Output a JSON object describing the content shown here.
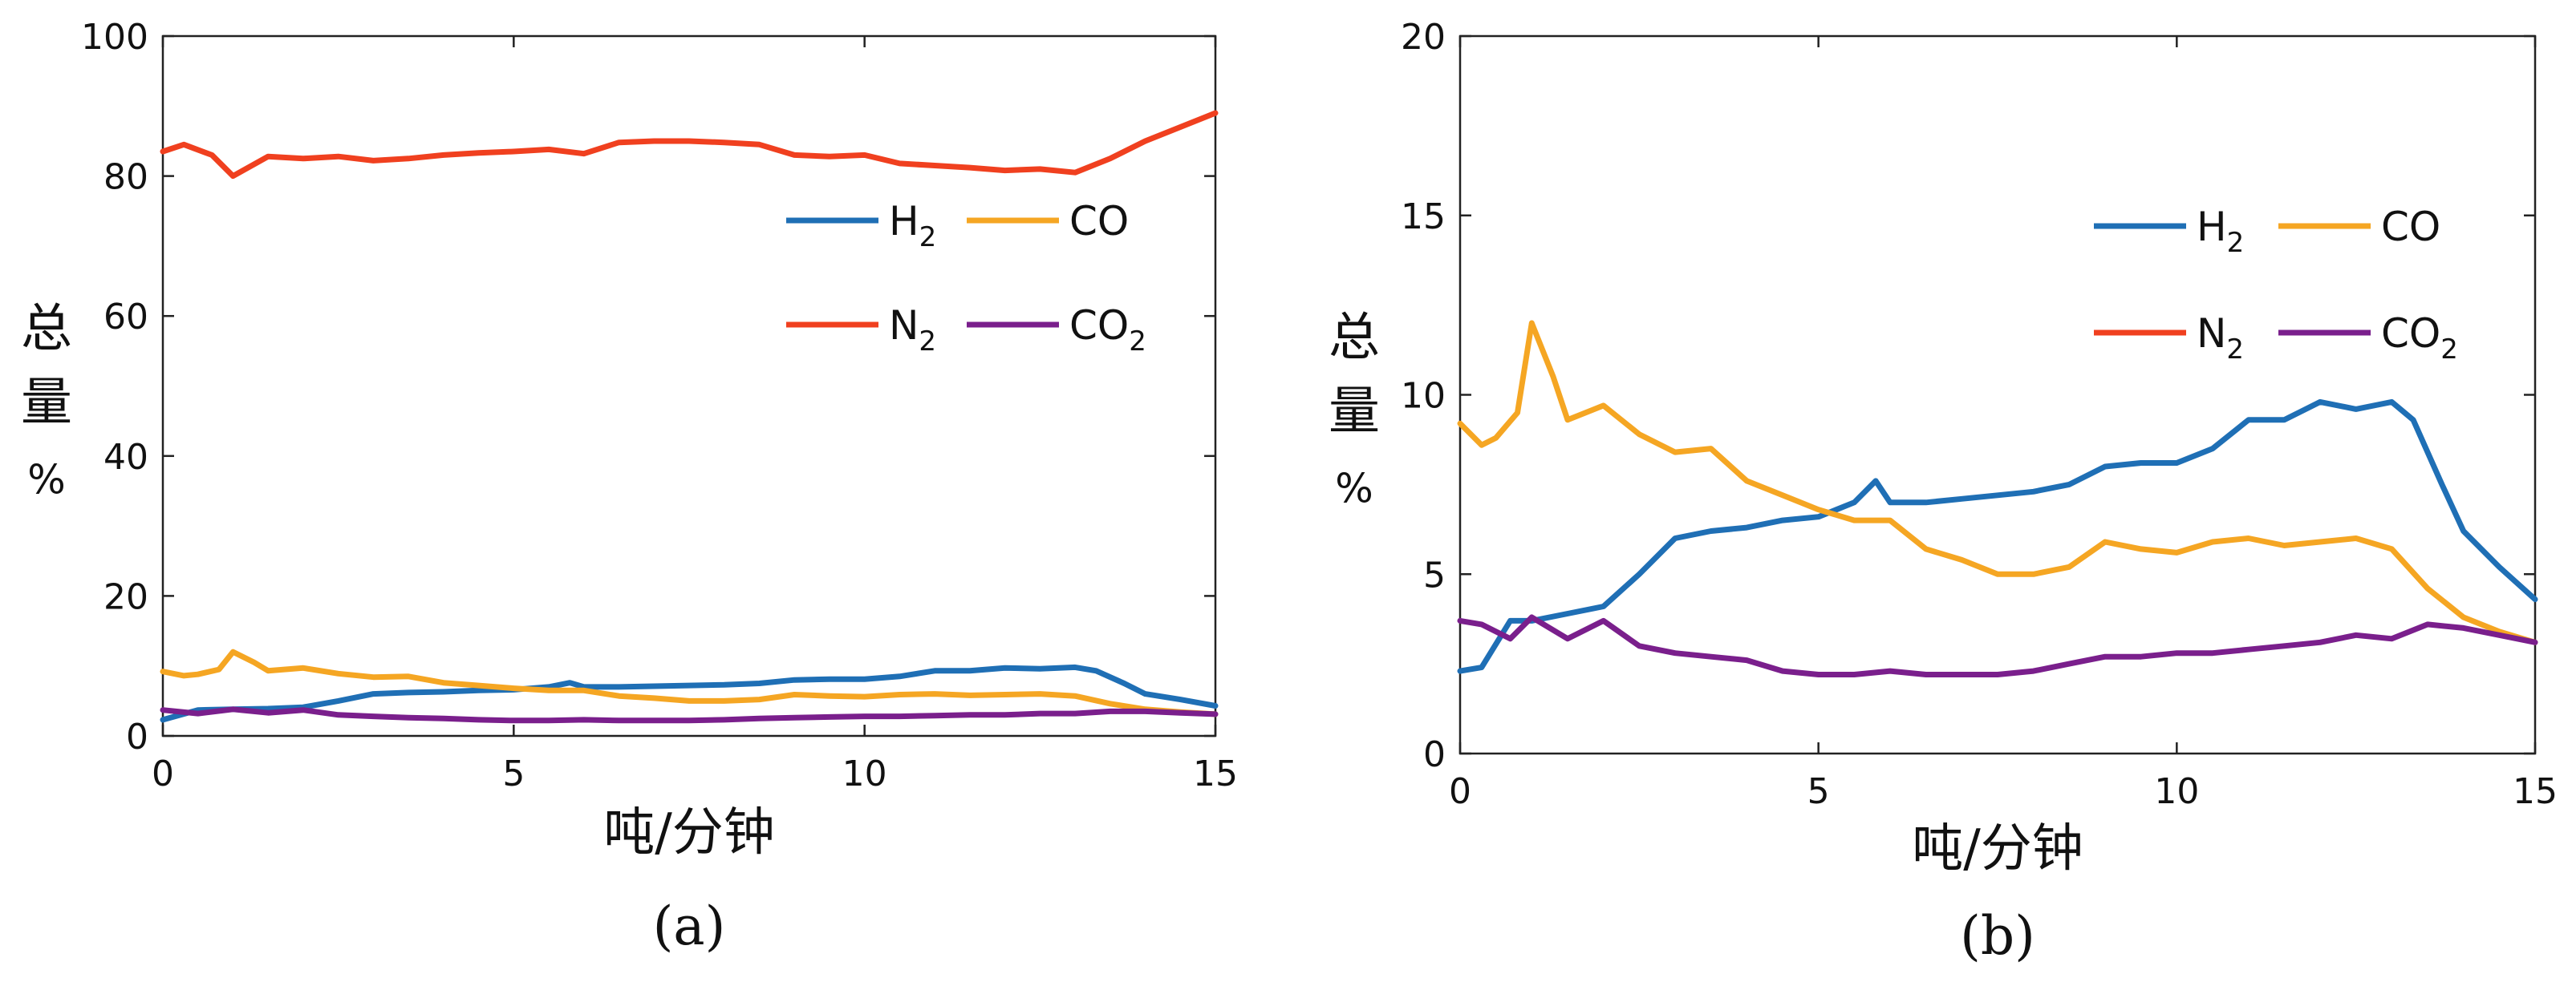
{
  "chart_data": [
    {
      "panel": "(a)",
      "type": "line",
      "xlabel": "吨/分钟",
      "ylabel": "总量%",
      "xlim": [
        0,
        15
      ],
      "ylim": [
        0,
        100
      ],
      "xticks": [
        0,
        5,
        10,
        15
      ],
      "yticks": [
        0,
        20,
        40,
        60,
        80,
        100
      ],
      "legend_position": "right",
      "series": [
        {
          "name": "H2",
          "color": "#1f6fb5",
          "x": [
            0,
            0.5,
            1,
            1.5,
            2,
            2.5,
            3,
            3.5,
            4,
            4.5,
            5,
            5.5,
            5.8,
            6,
            6.5,
            7,
            7.5,
            8,
            8.5,
            9,
            9.5,
            10,
            10.5,
            11,
            11.5,
            12,
            12.5,
            13,
            13.3,
            13.7,
            14,
            14.5,
            15
          ],
          "y": [
            2.3,
            3.7,
            3.8,
            3.9,
            4.1,
            5.0,
            6.0,
            6.2,
            6.3,
            6.5,
            6.6,
            7.0,
            7.6,
            7.0,
            7.0,
            7.1,
            7.2,
            7.3,
            7.5,
            8.0,
            8.1,
            8.1,
            8.5,
            9.3,
            9.3,
            9.7,
            9.6,
            9.8,
            9.3,
            7.5,
            6.0,
            5.2,
            4.3
          ]
        },
        {
          "name": "CO",
          "color": "#f5a623",
          "x": [
            0,
            0.3,
            0.5,
            0.8,
            1,
            1.3,
            1.5,
            2,
            2.5,
            3,
            3.5,
            4,
            4.5,
            5,
            5.5,
            6,
            6.5,
            7,
            7.5,
            8,
            8.5,
            9,
            9.5,
            10,
            10.5,
            11,
            11.5,
            12,
            12.5,
            13,
            13.5,
            14,
            14.5,
            15
          ],
          "y": [
            9.2,
            8.6,
            8.8,
            9.5,
            12.0,
            10.5,
            9.3,
            9.7,
            8.9,
            8.4,
            8.5,
            7.6,
            7.2,
            6.8,
            6.5,
            6.5,
            5.7,
            5.4,
            5.0,
            5.0,
            5.2,
            5.9,
            5.7,
            5.6,
            5.9,
            6.0,
            5.8,
            5.9,
            6.0,
            5.7,
            4.6,
            3.8,
            3.4,
            3.1
          ]
        },
        {
          "name": "N2",
          "color": "#f0401f",
          "x": [
            0,
            0.3,
            0.7,
            1,
            1.5,
            2,
            2.5,
            3,
            3.5,
            4,
            4.5,
            5,
            5.5,
            6,
            6.5,
            7,
            7.5,
            8,
            8.5,
            9,
            9.5,
            10,
            10.5,
            11,
            11.5,
            12,
            12.5,
            13,
            13.5,
            14,
            14.5,
            15
          ],
          "y": [
            83.5,
            84.5,
            83.0,
            80.0,
            82.8,
            82.5,
            82.8,
            82.2,
            82.5,
            83.0,
            83.3,
            83.5,
            83.8,
            83.2,
            84.8,
            85.0,
            85.0,
            84.8,
            84.5,
            83.0,
            82.8,
            83.0,
            81.8,
            81.5,
            81.2,
            80.8,
            81.0,
            80.5,
            82.5,
            85.0,
            87.0,
            89.0
          ]
        },
        {
          "name": "CO2",
          "color": "#7a1f8c",
          "x": [
            0,
            0.5,
            1,
            1.5,
            2,
            2.5,
            3,
            3.5,
            4,
            4.5,
            5,
            5.5,
            6,
            6.5,
            7,
            7.5,
            8,
            8.5,
            9,
            9.5,
            10,
            10.5,
            11,
            11.5,
            12,
            12.5,
            13,
            13.5,
            14,
            14.5,
            15
          ],
          "y": [
            3.7,
            3.2,
            3.8,
            3.3,
            3.7,
            3.0,
            2.8,
            2.6,
            2.5,
            2.3,
            2.2,
            2.2,
            2.3,
            2.2,
            2.2,
            2.2,
            2.3,
            2.5,
            2.6,
            2.7,
            2.8,
            2.8,
            2.9,
            3.0,
            3.0,
            3.2,
            3.2,
            3.5,
            3.5,
            3.3,
            3.1
          ]
        }
      ]
    },
    {
      "panel": "(b)",
      "type": "line",
      "xlabel": "吨/分钟",
      "ylabel": "总量%",
      "xlim": [
        0,
        15
      ],
      "ylim": [
        0,
        20
      ],
      "xticks": [
        0,
        5,
        10,
        15
      ],
      "yticks": [
        0,
        5,
        10,
        15,
        20
      ],
      "legend_position": "right",
      "series": [
        {
          "name": "H2",
          "color": "#1f6fb5",
          "x": [
            0,
            0.3,
            0.7,
            1,
            1.5,
            2,
            2.5,
            3,
            3.5,
            4,
            4.5,
            5,
            5.5,
            5.8,
            6,
            6.5,
            7,
            7.5,
            8,
            8.5,
            9,
            9.5,
            10,
            10.5,
            11,
            11.5,
            12,
            12.5,
            13,
            13.3,
            13.7,
            14,
            14.5,
            15
          ],
          "y": [
            2.3,
            2.4,
            3.7,
            3.7,
            3.9,
            4.1,
            5.0,
            6.0,
            6.2,
            6.3,
            6.5,
            6.6,
            7.0,
            7.6,
            7.0,
            7.0,
            7.1,
            7.2,
            7.3,
            7.5,
            8.0,
            8.1,
            8.1,
            8.5,
            9.3,
            9.3,
            9.8,
            9.6,
            9.8,
            9.3,
            7.5,
            6.2,
            5.2,
            4.3
          ]
        },
        {
          "name": "CO",
          "color": "#f5a623",
          "x": [
            0,
            0.3,
            0.5,
            0.8,
            1,
            1.3,
            1.5,
            2,
            2.5,
            3,
            3.5,
            4,
            4.5,
            5,
            5.5,
            6,
            6.5,
            7,
            7.5,
            8,
            8.5,
            9,
            9.5,
            10,
            10.5,
            11,
            11.5,
            12,
            12.5,
            13,
            13.5,
            14,
            14.5,
            15
          ],
          "y": [
            9.2,
            8.6,
            8.8,
            9.5,
            12.0,
            10.5,
            9.3,
            9.7,
            8.9,
            8.4,
            8.5,
            7.6,
            7.2,
            6.8,
            6.5,
            6.5,
            5.7,
            5.4,
            5.0,
            5.0,
            5.2,
            5.9,
            5.7,
            5.6,
            5.9,
            6.0,
            5.8,
            5.9,
            6.0,
            5.7,
            4.6,
            3.8,
            3.4,
            3.1
          ]
        },
        {
          "name": "N2",
          "color": "#f0401f",
          "x": [],
          "y": []
        },
        {
          "name": "CO2",
          "color": "#7a1f8c",
          "x": [
            0,
            0.3,
            0.7,
            1,
            1.5,
            2,
            2.5,
            3,
            3.5,
            4,
            4.5,
            5,
            5.5,
            6,
            6.5,
            7,
            7.5,
            8,
            8.5,
            9,
            9.5,
            10,
            10.5,
            11,
            11.5,
            12,
            12.5,
            13,
            13.5,
            14,
            14.5,
            15
          ],
          "y": [
            3.7,
            3.6,
            3.2,
            3.8,
            3.2,
            3.7,
            3.0,
            2.8,
            2.7,
            2.6,
            2.3,
            2.2,
            2.2,
            2.3,
            2.2,
            2.2,
            2.2,
            2.3,
            2.5,
            2.7,
            2.7,
            2.8,
            2.8,
            2.9,
            3.0,
            3.1,
            3.3,
            3.2,
            3.6,
            3.5,
            3.3,
            3.1
          ]
        }
      ]
    }
  ]
}
